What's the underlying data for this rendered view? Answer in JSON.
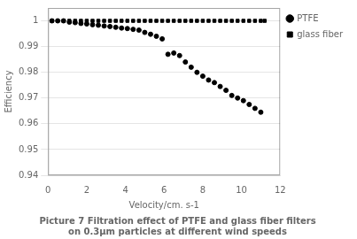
{
  "chart_data": {
    "type": "scatter",
    "caption": "Picture 7 Filtration effect of PTFE and glass fiber filters\non 0.3μm particles at different wind speeds",
    "xlabel": "Velocity/cm. s-1",
    "ylabel": "Efficiency",
    "xlim": [
      0,
      12
    ],
    "ylim": [
      0.94,
      1.005
    ],
    "xticks": [
      0,
      2,
      4,
      6,
      8,
      10,
      12
    ],
    "yticks": [
      0.94,
      0.95,
      0.96,
      0.97,
      0.98,
      0.99,
      1.0
    ],
    "grid": "y",
    "legend": "right",
    "series": [
      {
        "name": "glass fiber",
        "color": "#000000",
        "marker": "square",
        "x": [
          0.2,
          0.5,
          0.8,
          1.1,
          1.4,
          1.7,
          2.0,
          2.3,
          2.6,
          2.9,
          3.2,
          3.5,
          3.8,
          4.1,
          4.4,
          4.7,
          5.0,
          5.3,
          5.6,
          5.9,
          6.2,
          6.5,
          6.8,
          7.1,
          7.4,
          7.7,
          8.0,
          8.3,
          8.6,
          8.9,
          9.2,
          9.5,
          9.8,
          10.1,
          10.4,
          10.7,
          11.0,
          11.2
        ],
        "values": [
          1.0,
          1.0,
          1.0,
          1.0,
          1.0,
          1.0,
          1.0,
          1.0,
          1.0,
          1.0,
          1.0,
          1.0,
          1.0,
          1.0,
          1.0,
          1.0,
          1.0,
          1.0,
          1.0,
          1.0,
          1.0,
          1.0,
          1.0,
          1.0,
          1.0,
          1.0,
          1.0,
          1.0,
          1.0,
          1.0,
          1.0,
          1.0,
          1.0,
          1.0,
          1.0,
          1.0,
          1.0,
          1.0
        ]
      },
      {
        "name": "PTFE",
        "color": "#000000",
        "marker": "circle",
        "x": [
          0.2,
          0.5,
          0.8,
          1.1,
          1.4,
          1.7,
          2.0,
          2.3,
          2.6,
          2.9,
          3.2,
          3.5,
          3.8,
          4.1,
          4.4,
          4.7,
          5.0,
          5.3,
          5.6,
          5.9,
          6.2,
          6.5,
          6.8,
          7.1,
          7.4,
          7.7,
          8.0,
          8.3,
          8.6,
          8.9,
          9.2,
          9.5,
          9.8,
          10.1,
          10.4,
          10.7,
          11.0
        ],
        "values": [
          1.0,
          1.0,
          1.0,
          0.9995,
          0.9993,
          0.999,
          0.9988,
          0.9985,
          0.9983,
          0.998,
          0.9978,
          0.9975,
          0.9972,
          0.997,
          0.9967,
          0.9964,
          0.9955,
          0.9948,
          0.994,
          0.993,
          0.987,
          0.9875,
          0.9865,
          0.984,
          0.982,
          0.98,
          0.9785,
          0.977,
          0.976,
          0.9745,
          0.973,
          0.971,
          0.97,
          0.969,
          0.9675,
          0.966,
          0.9645
        ]
      }
    ]
  }
}
